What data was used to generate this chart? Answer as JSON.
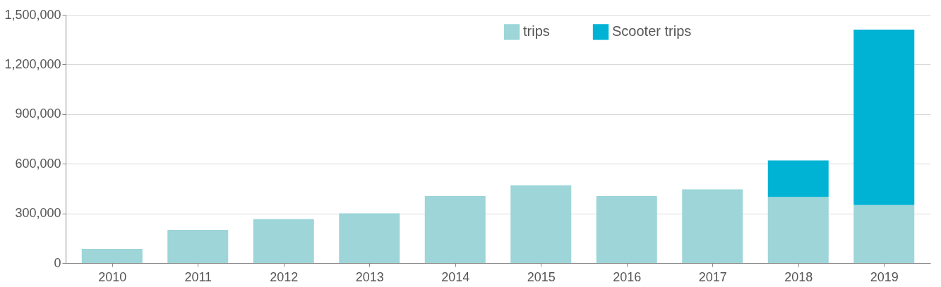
{
  "chart_data": {
    "type": "bar",
    "stacked": true,
    "categories": [
      "2010",
      "2011",
      "2012",
      "2013",
      "2014",
      "2015",
      "2016",
      "2017",
      "2018",
      "2019"
    ],
    "series": [
      {
        "name": "trips",
        "color": "#9dd5d8",
        "values": [
          85000,
          200000,
          265000,
          300000,
          405000,
          470000,
          405000,
          445000,
          400000,
          350000
        ]
      },
      {
        "name": "Scooter trips",
        "color": "#00b3d4",
        "values": [
          null,
          null,
          null,
          null,
          null,
          null,
          null,
          null,
          220000,
          1060000
        ]
      }
    ],
    "ylim": [
      0,
      1500000
    ],
    "yticks": [
      {
        "value": 0,
        "label": "0"
      },
      {
        "value": 300000,
        "label": "300,000"
      },
      {
        "value": 600000,
        "label": "600,000"
      },
      {
        "value": 900000,
        "label": "900,000"
      },
      {
        "value": 1200000,
        "label": "1,200,000"
      },
      {
        "value": 1500000,
        "label": "1,500,000"
      }
    ],
    "grid": "y",
    "legend": "top right"
  }
}
